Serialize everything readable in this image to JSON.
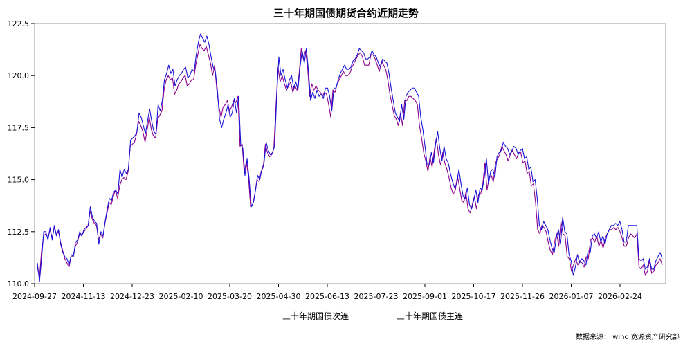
{
  "colors": {
    "series_secondary": "#8b008b",
    "series_main": "#1a12d6"
  },
  "source_text": "数据来源： wind 宽源资产研究部",
  "chart_data": {
    "type": "line",
    "title": "三十年期国债期货合约近期走势",
    "xlabel": "",
    "ylabel": "",
    "ylim": [
      110.0,
      122.5
    ],
    "yticks": [
      110.0,
      112.5,
      115.0,
      117.5,
      120.0,
      122.5
    ],
    "ytick_labels": [
      "110.0",
      "112.5",
      "115.0",
      "117.5",
      "120.0",
      "122.5"
    ],
    "xtick_labels": [
      "2024-09-27",
      "2024-11-13",
      "2024-12-23",
      "2025-02-10",
      "2025-03-20",
      "2025-04-30",
      "2025-06-13",
      "2025-07-23",
      "2025-09-01",
      "2025-10-17",
      "2025-11-26",
      "2026-01-07",
      "2026-02-24"
    ],
    "grid": false,
    "legend_position": "bottom-center",
    "series": [
      {
        "name": "三十年期国债次连",
        "color": "#8b008b",
        "values": [
          110.8,
          110.3,
          111.6,
          112.3,
          112.4,
          112.2,
          112.6,
          112.2,
          112.7,
          112.4,
          112.5,
          112.0,
          111.6,
          111.2,
          111.0,
          110.8,
          111.3,
          111.3,
          111.8,
          112.0,
          112.4,
          112.3,
          112.5,
          112.6,
          112.8,
          113.5,
          113.1,
          112.9,
          112.8,
          112.1,
          112.4,
          112.2,
          112.9,
          113.4,
          113.9,
          113.8,
          114.2,
          114.5,
          114.1,
          114.7,
          115.0,
          115.1,
          115.0,
          115.4,
          116.6,
          116.7,
          116.8,
          117.2,
          117.8,
          117.6,
          117.3,
          116.8,
          117.4,
          118.0,
          117.4,
          117.1,
          117.0,
          117.9,
          118.1,
          118.3,
          119.3,
          119.8,
          120.0,
          119.8,
          119.9,
          119.1,
          119.3,
          119.6,
          119.7,
          119.9,
          120.0,
          119.5,
          119.6,
          119.8,
          119.8,
          120.5,
          121.0,
          121.5,
          121.3,
          121.2,
          121.4,
          121.0,
          120.6,
          120.0,
          120.5,
          119.3,
          118.5,
          118.0,
          118.5,
          118.6,
          118.8,
          118.3,
          118.5,
          118.8,
          118.7,
          119.0,
          116.6,
          116.7,
          115.3,
          115.9,
          115.1,
          113.7,
          113.8,
          114.3,
          115.0,
          114.9,
          115.4,
          115.6,
          116.7,
          116.3,
          116.1,
          116.2,
          116.5,
          118.5,
          120.4,
          119.7,
          120.0,
          119.6,
          119.3,
          119.5,
          119.7,
          119.2,
          119.5,
          119.3,
          120.1,
          121.3,
          120.8,
          121.2,
          120.4,
          119.0,
          119.6,
          119.3,
          119.5,
          119.3,
          119.2,
          119.0,
          119.2,
          119.1,
          118.6,
          118.0,
          119.3,
          119.2,
          119.6,
          119.8,
          120.0,
          120.2,
          120.0,
          120.0,
          120.1,
          120.4,
          120.6,
          120.8,
          121.0,
          121.1,
          120.9,
          120.5,
          120.5,
          120.5,
          121.0,
          121.0,
          120.8,
          120.5,
          120.2,
          120.7,
          120.5,
          120.3,
          119.8,
          119.1,
          118.6,
          118.1,
          117.9,
          117.6,
          118.2,
          117.6,
          118.8,
          118.8,
          119.0,
          119.0,
          118.9,
          118.8,
          118.6,
          117.6,
          117.0,
          116.3,
          115.9,
          115.4,
          116.1,
          115.6,
          116.4,
          117.0,
          116.2,
          115.7,
          116.3,
          115.8,
          115.5,
          115.1,
          114.6,
          114.3,
          114.5,
          115.2,
          114.6,
          114.0,
          113.9,
          114.4,
          113.6,
          113.4,
          113.8,
          114.2,
          113.6,
          114.3,
          114.3,
          114.8,
          115.8,
          114.5,
          115.1,
          115.2,
          114.9,
          115.8,
          116.0,
          116.2,
          116.6,
          116.4,
          116.2,
          115.9,
          116.2,
          116.4,
          116.2,
          116.0,
          116.3,
          116.3,
          115.8,
          115.9,
          115.3,
          115.4,
          114.7,
          114.8,
          113.9,
          112.6,
          112.4,
          112.8,
          112.7,
          112.5,
          112.0,
          111.6,
          111.4,
          112.0,
          112.4,
          111.8,
          113.0,
          112.4,
          112.3,
          111.3,
          111.2,
          110.6,
          110.9,
          111.2,
          110.9,
          111.1,
          111.0,
          110.8,
          111.3,
          111.2,
          112.1,
          112.2,
          112.0,
          112.3,
          111.8,
          112.1,
          111.7,
          112.2,
          112.4,
          112.6,
          112.6,
          112.7,
          112.6,
          112.7,
          112.5,
          112.2,
          111.8,
          111.8,
          112.2,
          112.4,
          112.3,
          112.2,
          112.4,
          110.8,
          110.7,
          110.9,
          110.4,
          110.6,
          111.1,
          110.5,
          110.6,
          110.9,
          111.0,
          111.2,
          110.9
        ]
      },
      {
        "name": "三十年期国债主连",
        "color": "#1a12d6",
        "values": [
          111.0,
          110.1,
          111.2,
          112.5,
          112.5,
          112.1,
          112.7,
          112.1,
          112.8,
          112.3,
          112.6,
          111.9,
          111.5,
          111.3,
          111.2,
          110.9,
          111.4,
          111.3,
          112.0,
          112.1,
          112.5,
          112.3,
          112.6,
          112.7,
          112.8,
          113.7,
          113.2,
          113.0,
          112.9,
          111.9,
          112.5,
          112.3,
          113.0,
          113.6,
          114.1,
          114.0,
          114.4,
          114.5,
          114.3,
          115.5,
          115.1,
          115.5,
          115.3,
          115.5,
          116.9,
          117.0,
          117.1,
          117.3,
          118.2,
          118.0,
          117.6,
          117.2,
          117.8,
          118.4,
          117.8,
          117.3,
          117.2,
          118.6,
          118.3,
          118.8,
          119.8,
          120.1,
          120.5,
          120.1,
          120.3,
          119.5,
          119.8,
          120.0,
          120.1,
          120.3,
          120.4,
          119.9,
          120.0,
          120.3,
          120.2,
          121.0,
          121.6,
          122.0,
          121.8,
          121.6,
          121.9,
          121.5,
          120.9,
          120.4,
          120.2,
          119.3,
          117.9,
          117.5,
          117.9,
          118.2,
          118.6,
          118.0,
          118.2,
          118.9,
          118.2,
          119.0,
          116.7,
          116.5,
          115.2,
          116.0,
          115.0,
          113.7,
          113.9,
          114.5,
          115.2,
          115.0,
          115.5,
          115.8,
          116.8,
          116.4,
          116.2,
          116.3,
          116.6,
          119.0,
          120.9,
          120.0,
          120.3,
          119.8,
          119.4,
          119.8,
          120.0,
          119.4,
          119.7,
          119.3,
          120.4,
          121.2,
          120.6,
          121.3,
          120.2,
          118.8,
          119.2,
          118.9,
          119.3,
          119.0,
          119.1,
          118.9,
          119.4,
          119.4,
          119.0,
          118.3,
          119.4,
          119.4,
          119.8,
          120.1,
          120.3,
          120.5,
          120.3,
          120.3,
          120.4,
          120.7,
          120.8,
          121.0,
          121.3,
          121.2,
          121.1,
          120.8,
          120.8,
          120.9,
          121.2,
          121.0,
          120.9,
          120.6,
          120.4,
          120.8,
          120.7,
          120.6,
          120.1,
          119.4,
          118.8,
          118.2,
          118.0,
          117.8,
          118.6,
          117.9,
          119.0,
          119.2,
          119.3,
          119.4,
          119.4,
          119.2,
          119.0,
          118.0,
          117.4,
          116.6,
          115.7,
          115.7,
          116.3,
          115.8,
          116.7,
          117.3,
          116.5,
          115.9,
          116.6,
          116.0,
          115.8,
          115.3,
          114.9,
          114.6,
          114.8,
          115.5,
          114.8,
          114.2,
          114.1,
          114.6,
          113.8,
          113.6,
          114.0,
          114.5,
          113.9,
          114.6,
          114.5,
          115.1,
          116.0,
          114.8,
          115.4,
          115.5,
          115.1,
          116.1,
          116.3,
          116.4,
          116.8,
          116.6,
          116.5,
          116.2,
          116.4,
          116.6,
          116.5,
          116.2,
          116.4,
          116.5,
          116.0,
          116.1,
          115.5,
          115.6,
          114.9,
          115.0,
          114.1,
          112.8,
          112.6,
          113.0,
          112.8,
          112.6,
          112.1,
          111.7,
          111.5,
          112.2,
          112.6,
          111.9,
          113.2,
          112.5,
          112.4,
          111.4,
          111.1,
          110.4,
          110.8,
          111.4,
          111.0,
          111.2,
          111.1,
          110.9,
          111.6,
          111.5,
          112.3,
          112.4,
          112.2,
          112.5,
          112.0,
          112.3,
          111.9,
          112.4,
          112.6,
          112.8,
          112.8,
          112.9,
          112.8,
          113.0,
          112.6,
          112.0,
          112.0,
          112.8,
          112.8,
          112.8,
          112.8,
          112.8,
          111.2,
          111.1,
          111.2,
          110.7,
          110.8,
          111.2,
          110.7,
          110.7,
          111.1,
          111.3,
          111.5,
          111.2
        ]
      }
    ]
  }
}
